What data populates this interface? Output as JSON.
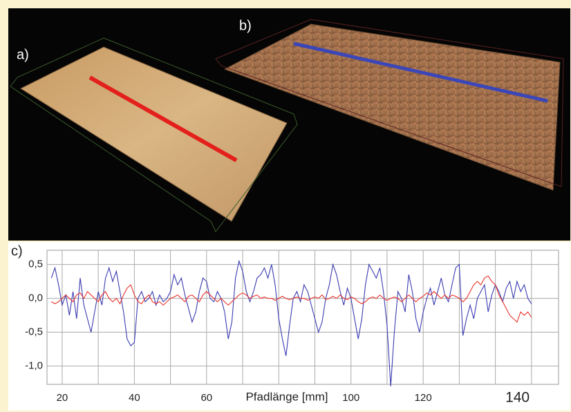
{
  "panel_labels": {
    "a": "a)",
    "b": "b)"
  },
  "chart_data": {
    "type": "line",
    "panel_label": "c)",
    "x_label": "Pfadlänge [mm]",
    "x": [
      17,
      18,
      19,
      20,
      21,
      22,
      23,
      24,
      25,
      26,
      27,
      28,
      29,
      30,
      31,
      32,
      33,
      34,
      35,
      36,
      37,
      38,
      39,
      40,
      41,
      42,
      43,
      44,
      45,
      46,
      47,
      48,
      49,
      50,
      51,
      52,
      53,
      54,
      55,
      56,
      57,
      58,
      59,
      60,
      61,
      62,
      63,
      64,
      65,
      66,
      67,
      68,
      69,
      70,
      71,
      72,
      73,
      74,
      75,
      76,
      77,
      78,
      79,
      80,
      81,
      82,
      83,
      84,
      85,
      86,
      87,
      88,
      89,
      90,
      91,
      92,
      93,
      94,
      95,
      96,
      97,
      98,
      99,
      100,
      101,
      102,
      103,
      104,
      105,
      106,
      107,
      108,
      109,
      110,
      111,
      112,
      113,
      114,
      115,
      116,
      117,
      118,
      119,
      120,
      121,
      122,
      123,
      124,
      125,
      126,
      127,
      128,
      129,
      130,
      131,
      132,
      133,
      134,
      135,
      136,
      137,
      138,
      139,
      140,
      141,
      142,
      143,
      144,
      145,
      146,
      147,
      148,
      149,
      150
    ],
    "series": [
      {
        "color": "#3a3ab0",
        "values": [
          0.3,
          0.45,
          0.2,
          -0.1,
          0.05,
          -0.25,
          0.1,
          -0.3,
          0.3,
          -0.1,
          -0.3,
          -0.5,
          -0.2,
          0.1,
          -0.1,
          0.3,
          0.45,
          0.25,
          0.4,
          0.1,
          -0.2,
          -0.6,
          -0.7,
          -0.65,
          0.0,
          0.1,
          -0.05,
          0.0,
          0.1,
          -0.1,
          0.05,
          -0.05,
          0.0,
          0.1,
          0.35,
          0.2,
          0.3,
          0.05,
          -0.15,
          -0.35,
          -0.2,
          0.1,
          0.3,
          0.25,
          0.0,
          -0.05,
          0.1,
          0.0,
          -0.2,
          -0.6,
          -0.35,
          0.3,
          0.55,
          0.4,
          0.1,
          -0.05,
          0.1,
          0.3,
          0.35,
          0.45,
          0.3,
          0.5,
          0.2,
          -0.3,
          -0.6,
          -0.85,
          -0.4,
          0.0,
          0.1,
          -0.05,
          0.2,
          0.1,
          -0.1,
          -0.3,
          -0.5,
          -0.35,
          0.0,
          0.2,
          0.5,
          0.35,
          0.1,
          -0.1,
          0.15,
          0.0,
          -0.3,
          -0.6,
          -0.3,
          0.2,
          0.5,
          0.4,
          0.3,
          0.45,
          0.1,
          -0.4,
          -1.3,
          -0.5,
          0.1,
          0.0,
          -0.2,
          0.35,
          0.1,
          -0.3,
          -0.5,
          -0.2,
          0.0,
          0.15,
          -0.1,
          0.1,
          0.3,
          0.05,
          -0.05,
          0.2,
          0.45,
          0.5,
          -0.55,
          -0.3,
          -0.1,
          -0.3,
          0.0,
          0.1,
          0.2,
          -0.2,
          0.05,
          0.2,
          0.1,
          -0.05,
          0.15,
          0.25,
          0.0,
          0.25,
          0.1,
          0.2,
          0.0,
          -0.08
        ]
      },
      {
        "color": "#e8322a",
        "values": [
          -0.05,
          -0.08,
          -0.05,
          0.0,
          0.05,
          0.0,
          -0.05,
          0.05,
          0.08,
          0.0,
          0.1,
          0.05,
          0.0,
          -0.05,
          0.05,
          0.1,
          0.0,
          -0.05,
          0.0,
          -0.08,
          0.05,
          0.15,
          0.2,
          0.05,
          -0.05,
          -0.08,
          0.0,
          0.05,
          -0.05,
          -0.08,
          -0.05,
          -0.1,
          -0.05,
          0.0,
          0.02,
          0.05,
          0.0,
          -0.05,
          0.03,
          0.05,
          0.0,
          -0.05,
          0.05,
          0.1,
          0.05,
          0.0,
          -0.05,
          0.0,
          -0.05,
          -0.1,
          -0.05,
          0.0,
          0.05,
          0.08,
          0.05,
          0.0,
          0.03,
          0.05,
          0.0,
          0.02,
          0.0,
          0.0,
          -0.03,
          0.0,
          0.03,
          0.0,
          -0.02,
          0.0,
          0.02,
          0.0,
          0.0,
          -0.03,
          0.0,
          0.02,
          0.0,
          0.05,
          -0.02,
          0.0,
          0.03,
          0.0,
          0.05,
          0.0,
          -0.02,
          0.02,
          0.0,
          -0.05,
          -0.08,
          -0.05,
          0.0,
          0.02,
          0.0,
          0.05,
          0.0,
          -0.03,
          0.0,
          0.02,
          0.0,
          -0.05,
          0.0,
          0.05,
          0.0,
          -0.05,
          0.0,
          0.03,
          0.08,
          0.05,
          0.1,
          0.05,
          0.0,
          0.05,
          0.0,
          0.05,
          0.03,
          0.0,
          -0.05,
          0.0,
          0.1,
          0.2,
          0.25,
          0.2,
          0.3,
          0.33,
          0.25,
          0.2,
          0.05,
          -0.05,
          -0.15,
          -0.25,
          -0.3,
          -0.35,
          -0.2,
          -0.25,
          -0.2,
          -0.28
        ]
      }
    ],
    "xlim": [
      15.8,
      157.5
    ],
    "ylim": [
      -1.27,
      0.71
    ],
    "xticks": [
      20,
      40,
      60,
      100,
      120,
      140
    ],
    "xgrid": [
      20,
      30,
      40,
      50,
      60,
      70,
      80,
      90,
      100,
      110,
      120,
      130,
      140,
      150
    ],
    "yticks": [
      {
        "value": 0.5,
        "label": "0,5"
      },
      {
        "value": 0,
        "label": "0,0"
      },
      {
        "value": -0.5,
        "label": "-0,5"
      },
      {
        "value": -1,
        "label": "-1,0"
      }
    ],
    "grid": true
  }
}
